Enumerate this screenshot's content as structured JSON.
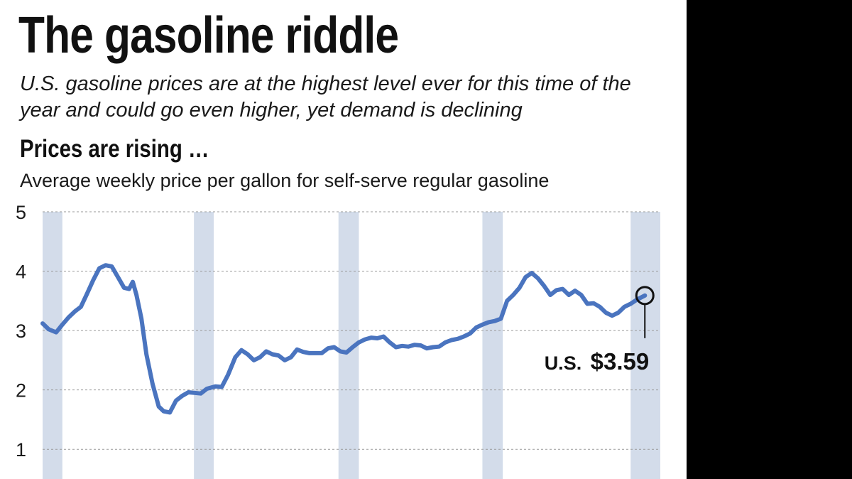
{
  "header": {
    "title": "The gasoline riddle",
    "subtitle": "U.S. gasoline prices are at the highest level ever for this time of the year and could go even higher, yet demand is declining",
    "section_heading": "Prices are rising …",
    "chart_description": "Average weekly price per gallon for self-serve regular gasoline"
  },
  "colors": {
    "line": "#4a74bf",
    "band": "#d3dcea",
    "background_right": "#000000"
  },
  "chart_data": {
    "type": "line",
    "title": "Prices are rising …",
    "subtitle": "Average weekly price per gallon for self-serve regular gasoline",
    "ylim": [
      0.5,
      5
    ],
    "yticks": [
      1,
      2,
      3,
      4,
      5
    ],
    "grid": true,
    "y_grid_style": "dashed",
    "bands": [
      {
        "from": 0.0,
        "to": 0.032
      },
      {
        "from": 0.245,
        "to": 0.277
      },
      {
        "from": 0.479,
        "to": 0.512
      },
      {
        "from": 0.712,
        "to": 0.745
      },
      {
        "from": 0.952,
        "to": 1.0
      }
    ],
    "series": [
      {
        "values": [
          [
            0.0,
            3.12
          ],
          [
            0.01,
            3.02
          ],
          [
            0.022,
            2.97
          ],
          [
            0.032,
            3.1
          ],
          [
            0.042,
            3.22
          ],
          [
            0.052,
            3.32
          ],
          [
            0.062,
            3.4
          ],
          [
            0.072,
            3.62
          ],
          [
            0.082,
            3.85
          ],
          [
            0.092,
            4.05
          ],
          [
            0.102,
            4.1
          ],
          [
            0.112,
            4.08
          ],
          [
            0.122,
            3.9
          ],
          [
            0.132,
            3.72
          ],
          [
            0.14,
            3.7
          ],
          [
            0.146,
            3.82
          ],
          [
            0.152,
            3.6
          ],
          [
            0.16,
            3.2
          ],
          [
            0.168,
            2.6
          ],
          [
            0.178,
            2.1
          ],
          [
            0.188,
            1.72
          ],
          [
            0.196,
            1.64
          ],
          [
            0.206,
            1.62
          ],
          [
            0.216,
            1.82
          ],
          [
            0.226,
            1.9
          ],
          [
            0.236,
            1.96
          ],
          [
            0.246,
            1.95
          ],
          [
            0.256,
            1.94
          ],
          [
            0.266,
            2.02
          ],
          [
            0.28,
            2.06
          ],
          [
            0.29,
            2.05
          ],
          [
            0.3,
            2.25
          ],
          [
            0.312,
            2.55
          ],
          [
            0.322,
            2.67
          ],
          [
            0.332,
            2.6
          ],
          [
            0.342,
            2.5
          ],
          [
            0.352,
            2.55
          ],
          [
            0.362,
            2.65
          ],
          [
            0.372,
            2.6
          ],
          [
            0.382,
            2.58
          ],
          [
            0.392,
            2.5
          ],
          [
            0.402,
            2.55
          ],
          [
            0.412,
            2.68
          ],
          [
            0.422,
            2.64
          ],
          [
            0.432,
            2.62
          ],
          [
            0.442,
            2.62
          ],
          [
            0.452,
            2.62
          ],
          [
            0.462,
            2.7
          ],
          [
            0.472,
            2.72
          ],
          [
            0.482,
            2.65
          ],
          [
            0.492,
            2.63
          ],
          [
            0.502,
            2.72
          ],
          [
            0.512,
            2.8
          ],
          [
            0.522,
            2.85
          ],
          [
            0.532,
            2.88
          ],
          [
            0.542,
            2.87
          ],
          [
            0.552,
            2.9
          ],
          [
            0.562,
            2.8
          ],
          [
            0.572,
            2.72
          ],
          [
            0.582,
            2.74
          ],
          [
            0.592,
            2.73
          ],
          [
            0.602,
            2.76
          ],
          [
            0.612,
            2.75
          ],
          [
            0.622,
            2.7
          ],
          [
            0.632,
            2.72
          ],
          [
            0.642,
            2.73
          ],
          [
            0.652,
            2.8
          ],
          [
            0.662,
            2.84
          ],
          [
            0.672,
            2.86
          ],
          [
            0.682,
            2.9
          ],
          [
            0.692,
            2.95
          ],
          [
            0.702,
            3.05
          ],
          [
            0.712,
            3.1
          ],
          [
            0.722,
            3.14
          ],
          [
            0.732,
            3.16
          ],
          [
            0.742,
            3.2
          ],
          [
            0.752,
            3.5
          ],
          [
            0.762,
            3.6
          ],
          [
            0.772,
            3.72
          ],
          [
            0.782,
            3.9
          ],
          [
            0.792,
            3.97
          ],
          [
            0.802,
            3.88
          ],
          [
            0.812,
            3.75
          ],
          [
            0.822,
            3.6
          ],
          [
            0.832,
            3.68
          ],
          [
            0.842,
            3.7
          ],
          [
            0.852,
            3.6
          ],
          [
            0.862,
            3.67
          ],
          [
            0.872,
            3.6
          ],
          [
            0.882,
            3.45
          ],
          [
            0.892,
            3.46
          ],
          [
            0.902,
            3.4
          ],
          [
            0.912,
            3.3
          ],
          [
            0.922,
            3.25
          ],
          [
            0.932,
            3.3
          ],
          [
            0.942,
            3.4
          ],
          [
            0.952,
            3.45
          ],
          [
            0.962,
            3.52
          ],
          [
            0.975,
            3.59
          ]
        ]
      }
    ],
    "annotations": [
      {
        "label": "U.S.",
        "value_label": "$3.59",
        "x": 0.975,
        "y": 3.59
      }
    ]
  }
}
